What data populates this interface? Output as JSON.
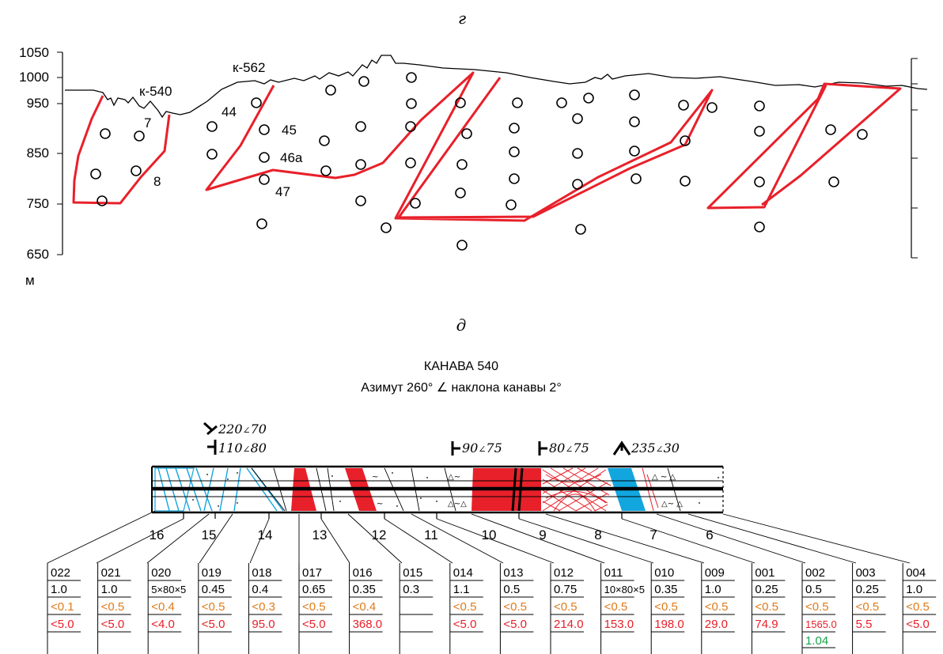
{
  "panel_g": {
    "letter": "г",
    "y_ticks": [
      "1050",
      "1000",
      "950",
      "850",
      "750",
      "650"
    ],
    "unit": "м",
    "labels": {
      "k540": "к-540",
      "k562": "к-562",
      "n7": "7",
      "n8": "8",
      "n44": "44",
      "n45": "45",
      "n46a": "46а",
      "n47": "47"
    }
  },
  "panel_d": {
    "letter": "д",
    "title": "КАНАВА 540",
    "subtitle": "Азимут 260° ∠  наклона канавы 2°",
    "dips": [
      {
        "az": "220",
        "angle": "70"
      },
      {
        "az": "110",
        "angle": "80"
      },
      {
        "az": "90",
        "angle": "75"
      },
      {
        "az": "80",
        "angle": "75"
      },
      {
        "az": "235",
        "angle": "30"
      }
    ],
    "angle_sign": "∠",
    "trench_numbers": [
      "16",
      "15",
      "14",
      "13",
      "12",
      "11",
      "10",
      "9",
      "8",
      "7",
      "6"
    ],
    "samples": [
      {
        "id": "022",
        "len": "1.0",
        "v1": "<0.1",
        "v2": "<5.0",
        "v3": ""
      },
      {
        "id": "021",
        "len": "1.0",
        "v1": "<0.5",
        "v2": "<5.0",
        "v3": ""
      },
      {
        "id": "020",
        "len": "5×80×5",
        "v1": "<0.4",
        "v2": "<4.0",
        "v3": ""
      },
      {
        "id": "019",
        "len": "0.45",
        "v1": "<0.5",
        "v2": "<5.0",
        "v3": ""
      },
      {
        "id": "018",
        "len": "0.4",
        "v1": "<0.3",
        "v2": "95.0",
        "v3": ""
      },
      {
        "id": "017",
        "len": "0.65",
        "v1": "<0.5",
        "v2": "<5.0",
        "v3": ""
      },
      {
        "id": "016",
        "len": "0.35",
        "v1": "<0.4",
        "v2": "368.0",
        "v3": ""
      },
      {
        "id": "015",
        "len": "0.3",
        "v1": "",
        "v2": "",
        "v3": ""
      },
      {
        "id": "014",
        "len": "1.1",
        "v1": "<0.5",
        "v2": "<5.0",
        "v3": ""
      },
      {
        "id": "013",
        "len": "0.5",
        "v1": "<0.5",
        "v2": "<5.0",
        "v3": ""
      },
      {
        "id": "012",
        "len": "0.75",
        "v1": "<0.5",
        "v2": "214.0",
        "v3": ""
      },
      {
        "id": "011",
        "len": "10×80×5",
        "v1": "<0.5",
        "v2": "153.0",
        "v3": ""
      },
      {
        "id": "010",
        "len": "0.35",
        "v1": "<0.5",
        "v2": "198.0",
        "v3": ""
      },
      {
        "id": "009",
        "len": "1.0",
        "v1": "<0.5",
        "v2": "29.0",
        "v3": ""
      },
      {
        "id": "001",
        "len": "0.25",
        "v1": "<0.5",
        "v2": "74.9",
        "v3": ""
      },
      {
        "id": "002",
        "len": "0.5",
        "v1": "<0.5",
        "v2": "1565.0",
        "v3": "1.04"
      },
      {
        "id": "003",
        "len": "0.25",
        "v1": "<0.5",
        "v2": "5.5",
        "v3": ""
      },
      {
        "id": "004",
        "len": "1.0",
        "v1": "<0.5",
        "v2": "<5.0",
        "v3": ""
      }
    ]
  },
  "colors": {
    "red": "#e8202a",
    "orange": "#e07b1a",
    "green": "#1aa34a",
    "blue": "#12a6df"
  }
}
